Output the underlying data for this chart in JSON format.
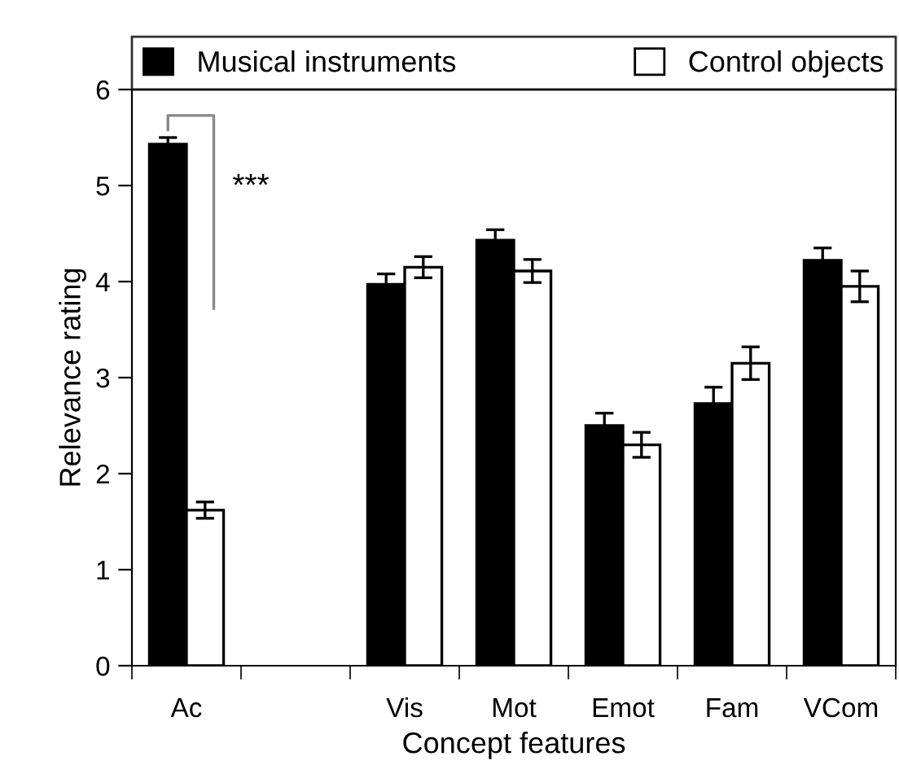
{
  "chart_data": {
    "type": "bar",
    "xlabel": "Concept features",
    "ylabel": "Relevance rating",
    "categories": [
      "Ac",
      null,
      "Vis",
      "Mot",
      "Emot",
      "Fam",
      "VCom"
    ],
    "series": [
      {
        "name": "Musical instruments",
        "color": "#000000",
        "values": [
          5.43,
          null,
          3.97,
          4.43,
          2.5,
          2.73,
          4.22
        ],
        "errors": [
          0.07,
          null,
          0.11,
          0.11,
          0.13,
          0.17,
          0.13
        ]
      },
      {
        "name": "Control objects",
        "color": "#ffffff",
        "values": [
          1.62,
          null,
          4.15,
          4.11,
          2.3,
          3.15,
          3.95
        ],
        "errors": [
          0.085,
          null,
          0.11,
          0.12,
          0.13,
          0.17,
          0.16
        ]
      }
    ],
    "ylim": [
      0,
      6
    ],
    "yticks": [
      0,
      1,
      2,
      3,
      4,
      5,
      6
    ],
    "grid": false,
    "legend": "top",
    "annotations": [
      "***"
    ]
  }
}
